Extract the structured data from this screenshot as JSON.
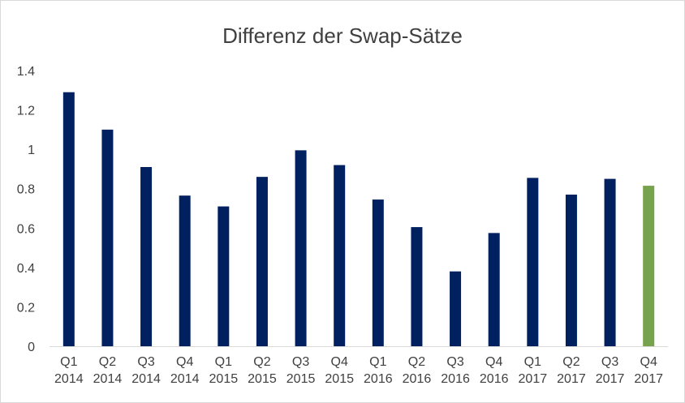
{
  "chart_data": {
    "type": "bar",
    "title": "Differenz der Swap-Sätze",
    "xlabel": "",
    "ylabel": "",
    "ylim": [
      0,
      1.4
    ],
    "yticks": [
      "0",
      "0.2",
      "0.4",
      "0.6",
      "0.8",
      "1",
      "1.2",
      "1.4"
    ],
    "grid": false,
    "legend": "none",
    "categories": [
      [
        "Q1",
        "2014"
      ],
      [
        "Q2",
        "2014"
      ],
      [
        "Q3",
        "2014"
      ],
      [
        "Q4",
        "2014"
      ],
      [
        "Q1",
        "2015"
      ],
      [
        "Q2",
        "2015"
      ],
      [
        "Q3",
        "2015"
      ],
      [
        "Q4",
        "2015"
      ],
      [
        "Q1",
        "2016"
      ],
      [
        "Q2",
        "2016"
      ],
      [
        "Q3",
        "2016"
      ],
      [
        "Q4",
        "2016"
      ],
      [
        "Q1",
        "2017"
      ],
      [
        "Q2",
        "2017"
      ],
      [
        "Q3",
        "2017"
      ],
      [
        "Q4",
        "2017"
      ]
    ],
    "series": [
      {
        "values": [
          1.29,
          1.1,
          0.91,
          0.765,
          0.71,
          0.86,
          0.995,
          0.92,
          0.745,
          0.605,
          0.38,
          0.575,
          0.855,
          0.77,
          0.85,
          0.815
        ]
      }
    ],
    "colors": {
      "bar": "#002060",
      "highlight_bar": "#76A34C",
      "axis": "#d9d9d9",
      "text": "#404040"
    },
    "highlight_index": 15
  }
}
